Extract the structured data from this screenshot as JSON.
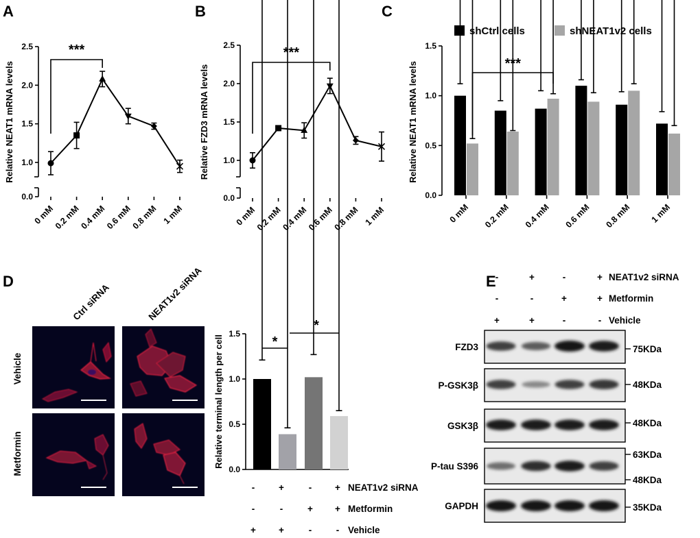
{
  "chart_data": [
    {
      "panel": "A",
      "type": "line",
      "categories": [
        "0 mM",
        "0.2 mM",
        "0.4 mM",
        "0.6 mM",
        "0.8 mM",
        "1 mM"
      ],
      "values": [
        0.99,
        1.35,
        2.08,
        1.6,
        1.47,
        0.95
      ],
      "errors": [
        0.15,
        0.17,
        0.1,
        0.1,
        0.04,
        0.08
      ],
      "markers": [
        "circle",
        "square",
        "triangle-up",
        "triangle-down",
        "diamond",
        "star"
      ],
      "ylabel": "Relative NEAT1 mRNA levels",
      "yticks": [
        "0.0",
        "1.0",
        "1.5",
        "2.0",
        "2.5"
      ],
      "ylim": [
        0.8,
        2.5
      ],
      "axis_break": true,
      "significance": {
        "from": 0,
        "to": 2,
        "label": "***"
      }
    },
    {
      "panel": "B",
      "type": "line",
      "categories": [
        "0 mM",
        "0.2 mM",
        "0.4 mM",
        "0.6 mM",
        "0.8 mM",
        "1 mM"
      ],
      "values": [
        1.0,
        1.42,
        1.39,
        1.97,
        1.26,
        1.18
      ],
      "errors": [
        0.1,
        0.02,
        0.1,
        0.1,
        0.05,
        0.19
      ],
      "markers": [
        "circle",
        "square",
        "triangle-up",
        "triangle-down",
        "diamond",
        "star"
      ],
      "ylabel": "Relative FZD3 mRNA levels",
      "yticks": [
        "0.0",
        "1.0",
        "1.5",
        "2.0",
        "2.5"
      ],
      "ylim": [
        0.8,
        2.5
      ],
      "axis_break": true,
      "significance": {
        "from": 0,
        "to": 3,
        "label": "***"
      }
    },
    {
      "panel": "C",
      "type": "bar",
      "categories": [
        "0 mM",
        "0.2 mM",
        "0.4 mM",
        "0.6 mM",
        "0.8 mM",
        "1 mM"
      ],
      "series": [
        {
          "name": "shCtrl cells",
          "color": "#000000",
          "values": [
            1.0,
            0.85,
            0.87,
            1.1,
            0.91,
            0.72
          ],
          "errors": [
            0.12,
            0.1,
            0.18,
            0.06,
            0.13,
            0.12
          ]
        },
        {
          "name": "shNEAT1v2 cells",
          "color": "#a6a6a6",
          "values": [
            0.52,
            0.64,
            0.97,
            0.94,
            1.05,
            0.62
          ],
          "errors": [
            0.05,
            0.01,
            0.05,
            0.09,
            0.07,
            0.08
          ]
        }
      ],
      "ylabel": "Relative NEAT1 mRNA levels",
      "yticks": [
        "0.0",
        "0.5",
        "1.0",
        "1.5"
      ],
      "ylim": [
        0,
        1.5
      ],
      "legend": "top",
      "significance": {
        "from": [
          0,
          1
        ],
        "to": [
          2,
          1
        ],
        "label": "***"
      }
    },
    {
      "panel": "D",
      "type": "bar",
      "categories": [
        "Vehicle / Ctrl siRNA",
        "Vehicle / NEAT1v2 siRNA",
        "Metformin / Ctrl siRNA",
        "Metformin / NEAT1v2 siRNA"
      ],
      "values": [
        1.0,
        0.39,
        1.02,
        0.59
      ],
      "errors": [
        0.21,
        0.07,
        0.25,
        0.06
      ],
      "colors": [
        "#000000",
        "#a2a2a8",
        "#757575",
        "#d2d2d2"
      ],
      "ylabel": "Relative terminal length per cell",
      "yticks": [
        "0.0",
        "0.5",
        "1.0",
        "1.5"
      ],
      "ylim": [
        0,
        1.5
      ],
      "significance": [
        {
          "from": 0,
          "to": 1,
          "label": "*"
        },
        {
          "from": 1,
          "to": 3,
          "label": "*"
        }
      ],
      "conditions": [
        {
          "label": "NEAT1v2 siRNA",
          "marks": [
            "-",
            "+",
            "-",
            "+"
          ]
        },
        {
          "label": "Metformin",
          "marks": [
            "-",
            "-",
            "+",
            "+"
          ]
        },
        {
          "label": "Vehicle",
          "marks": [
            "+",
            "+",
            "-",
            "-"
          ]
        }
      ]
    }
  ],
  "panels": {
    "A": "A",
    "B": "B",
    "C": "C",
    "D": "D",
    "E": "E"
  },
  "images": {
    "col_labels": [
      "Ctrl siRNA",
      "NEAT1v2 siRNA"
    ],
    "row_labels": [
      "Vehicle",
      "Metformin"
    ]
  },
  "blot": {
    "conditions": [
      {
        "label": "NEAT1v2 siRNA",
        "marks": [
          "-",
          "+",
          "-",
          "+"
        ]
      },
      {
        "label": "Metformin",
        "marks": [
          "-",
          "-",
          "+",
          "+"
        ]
      },
      {
        "label": "Vehicle",
        "marks": [
          "+",
          "+",
          "-",
          "-"
        ]
      }
    ],
    "rows": [
      {
        "name": "FZD3",
        "markers": [
          "75KDa"
        ],
        "intensity": [
          0.75,
          0.6,
          1.0,
          0.95
        ]
      },
      {
        "name": "P-GSK3β",
        "markers": [
          "48KDa"
        ],
        "intensity": [
          0.75,
          0.35,
          0.75,
          0.8
        ]
      },
      {
        "name": "GSK3β",
        "markers": [
          "48KDa"
        ],
        "intensity": [
          0.95,
          0.95,
          0.95,
          0.95
        ]
      },
      {
        "name": "P-tau S396",
        "markers": [
          "63KDa",
          "48KDa"
        ],
        "intensity": [
          0.5,
          0.85,
          0.95,
          0.75
        ]
      },
      {
        "name": "GAPDH",
        "markers": [
          "35KDa"
        ],
        "intensity": [
          1.0,
          1.0,
          1.0,
          1.0
        ]
      }
    ]
  }
}
